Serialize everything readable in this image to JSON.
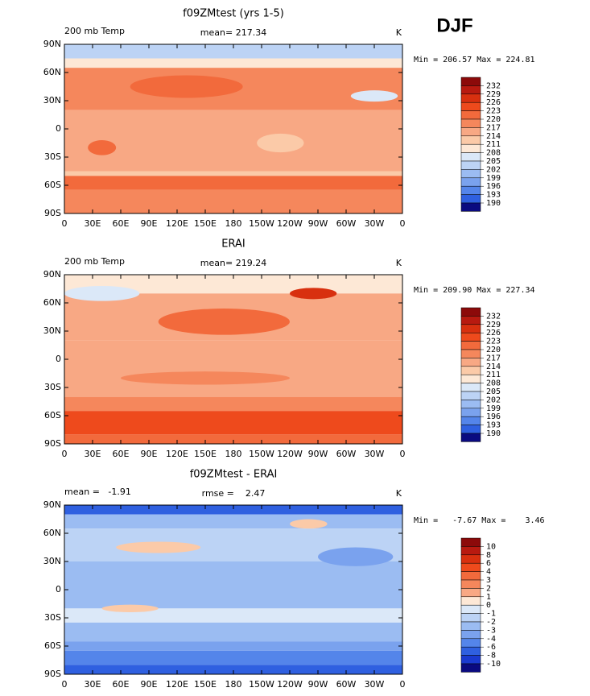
{
  "figure_title": "DJF",
  "lon_labels": [
    "0",
    "30E",
    "60E",
    "90E",
    "120E",
    "150E",
    "180",
    "150W",
    "120W",
    "90W",
    "60W",
    "30W",
    "0"
  ],
  "lat_labels": [
    "90N",
    "60N",
    "30N",
    "0",
    "30S",
    "60S",
    "90S"
  ],
  "panels": [
    {
      "title": "f09ZMtest (yrs 1-5)",
      "left_label": "200 mb Temp",
      "center_label": "mean= 217.34",
      "right_label": "K",
      "stats": "Min = 206.57 Max = 224.81",
      "colorbar": {
        "levels": [
          232,
          229,
          226,
          223,
          220,
          217,
          214,
          211,
          208,
          205,
          202,
          199,
          196,
          193,
          190
        ],
        "colors": [
          "#8c0a0a",
          "#b81a10",
          "#d8300f",
          "#ee4a1c",
          "#f26a3c",
          "#f5875c",
          "#f8a884",
          "#fbcaa8",
          "#fde8d6",
          "#dbe8f8",
          "#bcd3f5",
          "#9bbcf2",
          "#7aa2ee",
          "#5485ea",
          "#2f60e0",
          "#0a0a80"
        ]
      }
    },
    {
      "title": "ERAI",
      "left_label": "200 mb Temp",
      "center_label": "mean= 219.24",
      "right_label": "K",
      "stats": "Min = 209.90 Max = 227.34",
      "colorbar": {
        "levels": [
          232,
          229,
          226,
          223,
          220,
          217,
          214,
          211,
          208,
          205,
          202,
          199,
          196,
          193,
          190
        ],
        "colors": [
          "#8c0a0a",
          "#b81a10",
          "#d8300f",
          "#ee4a1c",
          "#f26a3c",
          "#f5875c",
          "#f8a884",
          "#fbcaa8",
          "#fde8d6",
          "#dbe8f8",
          "#bcd3f5",
          "#9bbcf2",
          "#7aa2ee",
          "#5485ea",
          "#2f60e0",
          "#0a0a80"
        ]
      }
    },
    {
      "title": "f09ZMtest - ERAI",
      "left_label": "mean =   -1.91",
      "center_label": "rmse =    2.47",
      "right_label": "K",
      "stats": "Min =   -7.67 Max =    3.46",
      "colorbar": {
        "levels": [
          10,
          8,
          6,
          4,
          3,
          2,
          1,
          0,
          -1,
          -2,
          -3,
          -4,
          -6,
          -8,
          -10
        ],
        "colors": [
          "#8c0a0a",
          "#b81a10",
          "#d8300f",
          "#ee4a1c",
          "#f26a3c",
          "#f5875c",
          "#f8a884",
          "#fde8d6",
          "#dbe8f8",
          "#bcd3f5",
          "#9bbcf2",
          "#7aa2ee",
          "#5485ea",
          "#2f60e0",
          "#1a3ad0",
          "#0a0a80"
        ]
      }
    }
  ]
}
